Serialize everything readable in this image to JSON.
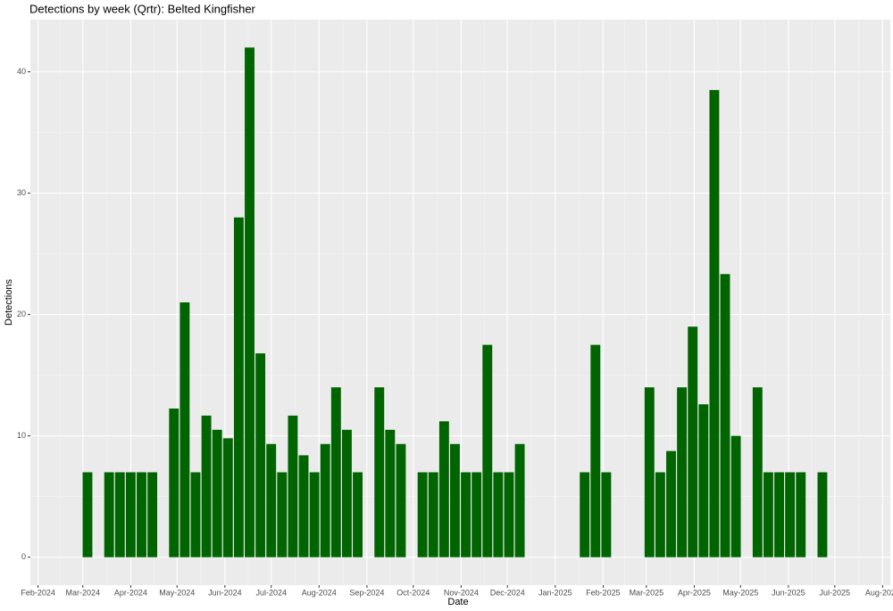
{
  "chart_data": {
    "type": "bar",
    "title": "Detections by week (Qrtr): Belted Kingfisher",
    "x_label": "Date",
    "y_label": "Detections",
    "x": [
      "2024-03-04",
      "2024-03-18",
      "2024-03-25",
      "2024-04-01",
      "2024-04-08",
      "2024-04-15",
      "2024-04-29",
      "2024-05-06",
      "2024-05-13",
      "2024-05-20",
      "2024-05-27",
      "2024-06-03",
      "2024-06-10",
      "2024-06-17",
      "2024-06-24",
      "2024-07-01",
      "2024-07-08",
      "2024-07-15",
      "2024-07-22",
      "2024-07-29",
      "2024-08-05",
      "2024-08-12",
      "2024-08-19",
      "2024-08-26",
      "2024-09-09",
      "2024-09-16",
      "2024-09-23",
      "2024-10-07",
      "2024-10-14",
      "2024-10-21",
      "2024-10-28",
      "2024-11-04",
      "2024-11-11",
      "2024-11-18",
      "2024-11-25",
      "2024-12-02",
      "2024-12-09",
      "2025-01-20",
      "2025-01-27",
      "2025-02-03",
      "2025-03-03",
      "2025-03-10",
      "2025-03-17",
      "2025-03-24",
      "2025-03-31",
      "2025-04-07",
      "2025-04-14",
      "2025-04-21",
      "2025-04-28",
      "2025-05-12",
      "2025-05-19",
      "2025-05-26",
      "2025-06-02",
      "2025-06-09",
      "2025-06-23"
    ],
    "values": [
      7,
      7,
      7,
      7,
      7,
      7,
      12.25,
      21,
      7,
      11.67,
      10.5,
      9.8,
      28,
      42,
      16.8,
      9.33,
      7,
      11.67,
      8.4,
      7,
      9.33,
      14,
      10.5,
      7,
      14,
      10.5,
      9.33,
      7,
      7,
      11.2,
      9.33,
      7,
      7,
      17.5,
      7,
      7,
      9.33,
      7,
      17.5,
      7,
      14,
      7,
      8.75,
      14,
      19,
      12.6,
      38.5,
      23.33,
      10,
      14,
      7,
      7,
      7,
      7,
      7
    ],
    "color": "#006400",
    "xlim": [
      "2024-01-27",
      "2025-08-06"
    ],
    "xticks": [
      {
        "value": "2024-02-01",
        "label": "Feb-2024"
      },
      {
        "value": "2024-03-01",
        "label": "Mar-2024"
      },
      {
        "value": "2024-04-01",
        "label": "Apr-2024"
      },
      {
        "value": "2024-05-01",
        "label": "May-2024"
      },
      {
        "value": "2024-06-01",
        "label": "Jun-2024"
      },
      {
        "value": "2024-07-01",
        "label": "Jul-2024"
      },
      {
        "value": "2024-08-01",
        "label": "Aug-2024"
      },
      {
        "value": "2024-09-01",
        "label": "Sep-2024"
      },
      {
        "value": "2024-10-01",
        "label": "Oct-2024"
      },
      {
        "value": "2024-11-01",
        "label": "Nov-2024"
      },
      {
        "value": "2024-12-01",
        "label": "Dec-2024"
      },
      {
        "value": "2025-01-01",
        "label": "Jan-2025"
      },
      {
        "value": "2025-02-01",
        "label": "Feb-2025"
      },
      {
        "value": "2025-03-01",
        "label": "Mar-2025"
      },
      {
        "value": "2025-04-01",
        "label": "Apr-2025"
      },
      {
        "value": "2025-05-01",
        "label": "May-2025"
      },
      {
        "value": "2025-06-01",
        "label": "Jun-2025"
      },
      {
        "value": "2025-07-01",
        "label": "Jul-2025"
      },
      {
        "value": "2025-08-01",
        "label": "Aug-2025"
      }
    ],
    "ylim": [
      -2.3,
      44.3
    ],
    "yticks": [
      0,
      10,
      20,
      30,
      40
    ],
    "grid": true
  }
}
